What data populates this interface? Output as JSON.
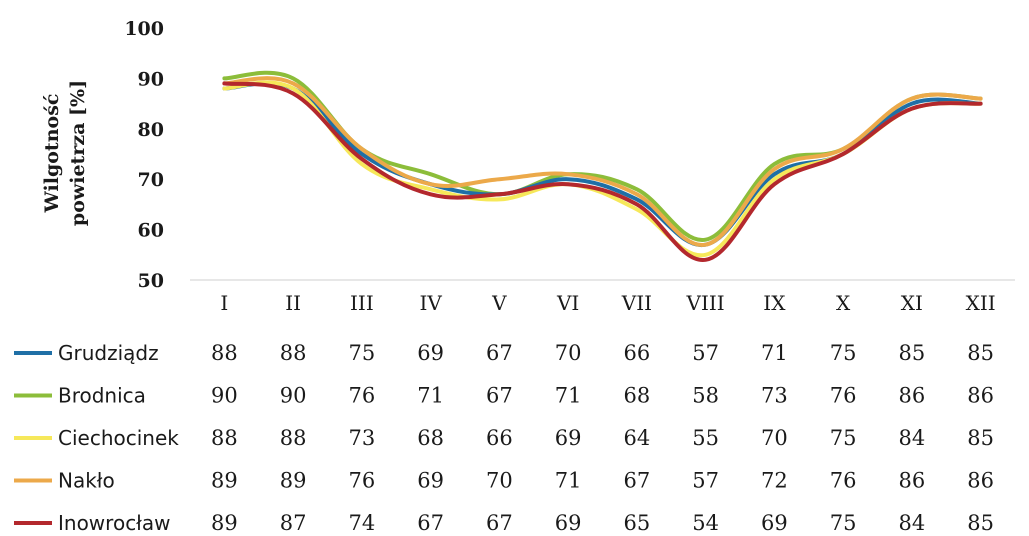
{
  "chart_data": {
    "type": "line",
    "ylabel_lines": [
      "Wilgotność",
      "powietrza [%]"
    ],
    "ylim": [
      50,
      100
    ],
    "yticks": [
      50,
      60,
      70,
      80,
      90,
      100
    ],
    "categories": [
      "I",
      "II",
      "III",
      "IV",
      "V",
      "VI",
      "VII",
      "VIII",
      "IX",
      "X",
      "XI",
      "XII"
    ],
    "grid": false,
    "legend": "bottom-table",
    "series": [
      {
        "name": "Grudziądz",
        "color": "#1f6fa6",
        "values": [
          88,
          88,
          75,
          69,
          67,
          70,
          66,
          57,
          71,
          75,
          85,
          85
        ]
      },
      {
        "name": "Brodnica",
        "color": "#8cbd3a",
        "values": [
          90,
          90,
          76,
          71,
          67,
          71,
          68,
          58,
          73,
          76,
          86,
          86
        ]
      },
      {
        "name": "Ciechocinek",
        "color": "#f6e85a",
        "values": [
          88,
          88,
          73,
          68,
          66,
          69,
          64,
          55,
          70,
          75,
          84,
          85
        ]
      },
      {
        "name": "Nakło",
        "color": "#eca94a",
        "values": [
          89,
          89,
          76,
          69,
          70,
          71,
          67,
          57,
          72,
          76,
          86,
          86
        ]
      },
      {
        "name": "Inowrocław",
        "color": "#b3282d",
        "values": [
          89,
          87,
          74,
          67,
          67,
          69,
          65,
          54,
          69,
          75,
          84,
          85
        ]
      }
    ]
  }
}
